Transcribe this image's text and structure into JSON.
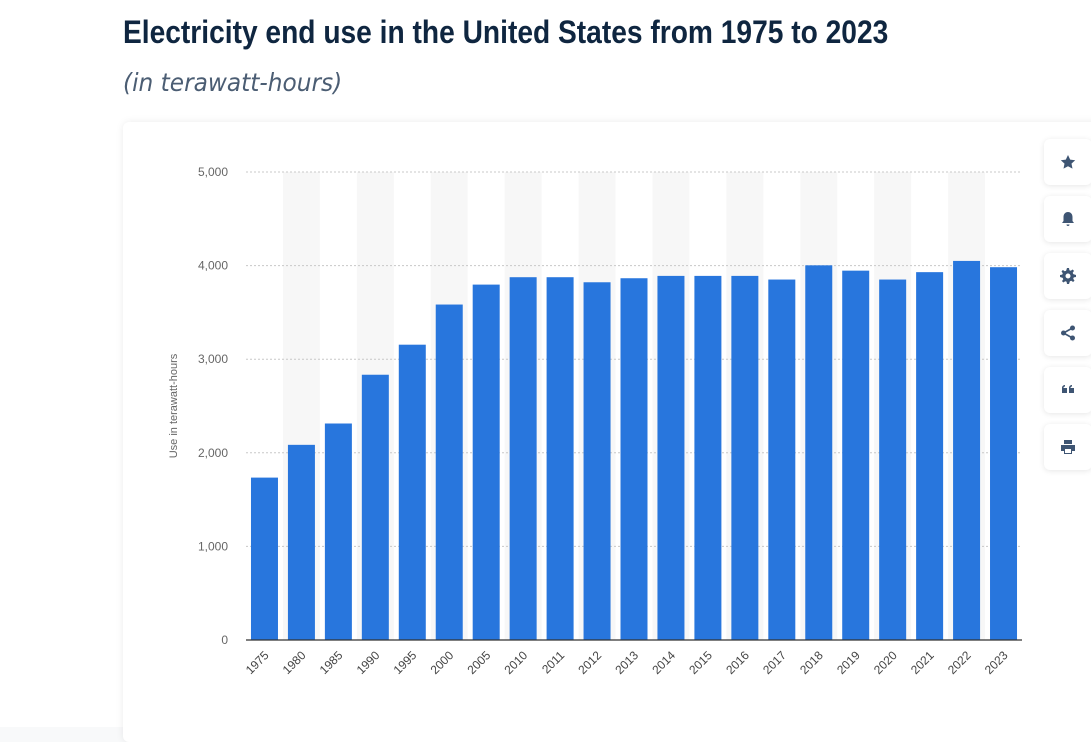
{
  "header": {
    "title": "Electricity end use in the United States from 1975 to 2023",
    "subtitle": "(in terawatt-hours)"
  },
  "toolbar": [
    {
      "icon": "star-icon",
      "name": "favorite-button"
    },
    {
      "icon": "bell-icon",
      "name": "notification-button"
    },
    {
      "icon": "gear-icon",
      "name": "settings-button"
    },
    {
      "icon": "share-icon",
      "name": "share-button"
    },
    {
      "icon": "quote-icon",
      "name": "cite-button"
    },
    {
      "icon": "print-icon",
      "name": "print-button"
    }
  ],
  "chart_data": {
    "type": "bar",
    "title": "",
    "xlabel": "",
    "ylabel": "Use in terawatt-hours",
    "ylim": [
      0,
      5000
    ],
    "yticks": [
      0,
      1000,
      2000,
      3000,
      4000,
      5000
    ],
    "ytick_labels": [
      "0",
      "1,000",
      "2,000",
      "3,000",
      "4,000",
      "5,000"
    ],
    "grid": true,
    "color": "#2876dd",
    "categories": [
      "1975",
      "1980",
      "1985",
      "1990",
      "1995",
      "2000",
      "2005",
      "2010",
      "2011",
      "2012",
      "2013",
      "2014",
      "2015",
      "2016",
      "2017",
      "2018",
      "2019",
      "2020",
      "2021",
      "2022",
      "2023"
    ],
    "values": [
      1735,
      2085,
      2313,
      2834,
      3155,
      3584,
      3797,
      3876,
      3876,
      3822,
      3865,
      3890,
      3890,
      3890,
      3851,
      4003,
      3946,
      3851,
      3930,
      4050,
      3983
    ]
  }
}
